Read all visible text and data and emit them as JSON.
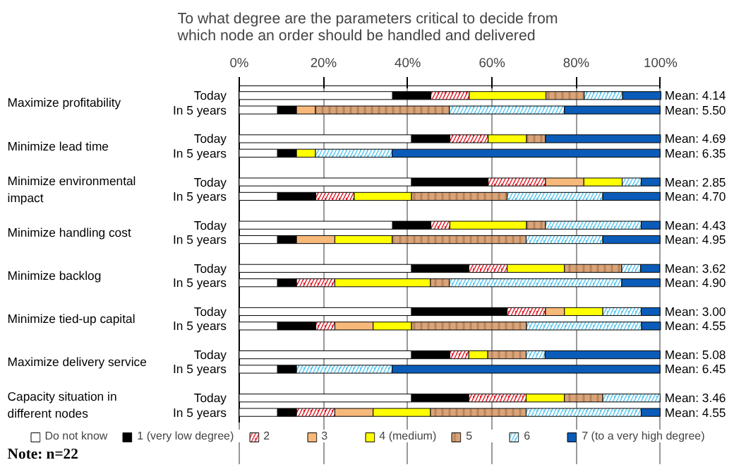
{
  "chart_data": {
    "type": "bar",
    "orientation": "horizontal",
    "stacked": true,
    "title": "To what degree are the parameters critical to decide from which node an order should be handled and delivered",
    "categories": [
      "Today",
      "In 5 years",
      null,
      "Today",
      "In 5 years",
      null,
      "Today",
      "In 5 years",
      null,
      "Today",
      "In 5 years",
      null,
      "Today",
      "In 5 years",
      null,
      "Today",
      "In 5 years",
      null,
      "Today",
      "In 5 years",
      null,
      "Today",
      "In 5 years"
    ],
    "series": [
      {
        "name": "Do not know",
        "color": "#ffffff",
        "values": [
          36.4,
          9.1,
          null,
          40.9,
          9.1,
          null,
          40.9,
          9.1,
          null,
          36.4,
          9.1,
          null,
          40.9,
          9.1,
          null,
          40.9,
          9.1,
          null,
          40.9,
          9.1,
          null,
          40.9,
          9.1
        ]
      },
      {
        "name": "1 (very low degree)",
        "color": "#000000",
        "values": [
          9.1,
          4.5,
          null,
          9.1,
          4.5,
          null,
          18.2,
          9.1,
          null,
          9.1,
          4.5,
          null,
          13.6,
          4.5,
          null,
          22.7,
          9.1,
          null,
          9.1,
          4.5,
          null,
          13.6,
          4.5
        ]
      },
      {
        "name": "2",
        "color": "#e8202a",
        "values": [
          9.1,
          0,
          null,
          9.1,
          0,
          null,
          13.6,
          9.1,
          null,
          4.5,
          0,
          null,
          9.1,
          9.1,
          null,
          9.1,
          4.5,
          null,
          4.5,
          0,
          null,
          13.6,
          9.1
        ]
      },
      {
        "name": "3",
        "color": "#f7b97a",
        "values": [
          0,
          4.5,
          null,
          0,
          0,
          null,
          9.1,
          0,
          null,
          0,
          9.1,
          null,
          0,
          0,
          null,
          4.5,
          9.1,
          null,
          0,
          0,
          null,
          0,
          9.1
        ]
      },
      {
        "name": "4 (medium)",
        "color": "#ffff00",
        "values": [
          18.2,
          0,
          null,
          9.1,
          4.5,
          null,
          9.1,
          13.6,
          null,
          18.2,
          13.6,
          null,
          13.6,
          22.7,
          null,
          9.1,
          9.1,
          null,
          4.5,
          0,
          null,
          9.1,
          13.6
        ]
      },
      {
        "name": "5",
        "color": "#d9a47a",
        "values": [
          9.1,
          31.8,
          null,
          4.5,
          0,
          null,
          0,
          22.7,
          null,
          4.5,
          31.8,
          null,
          13.6,
          4.5,
          null,
          0,
          27.3,
          null,
          9.1,
          0,
          null,
          9.1,
          22.7
        ]
      },
      {
        "name": "6",
        "color": "#5bc8f0",
        "values": [
          9.1,
          27.3,
          null,
          0,
          18.2,
          null,
          4.5,
          22.7,
          null,
          22.7,
          18.2,
          null,
          4.5,
          40.9,
          null,
          9.1,
          27.3,
          null,
          4.5,
          22.7,
          null,
          13.6,
          27.3
        ]
      },
      {
        "name": "7 (to a very high degree)",
        "color": "#0a5cb8",
        "values": [
          9.1,
          22.7,
          null,
          27.3,
          63.6,
          null,
          4.5,
          13.6,
          null,
          4.5,
          13.6,
          null,
          4.5,
          9.1,
          null,
          4.5,
          4.5,
          null,
          27.3,
          63.6,
          null,
          0,
          4.5
        ]
      }
    ],
    "annotations": [
      "Maximize profitability",
      "Minimize lead time",
      "Minimize environmental impact",
      "Minimize handling cost",
      "Minimize backlog",
      "Minimize tied-up capital",
      "Maximize delivery service",
      "Capacity situation in different nodes",
      "Mean: 4.14",
      "Mean: 5.50",
      "Mean: 4.69",
      "Mean: 6.35",
      "Mean: 2.85",
      "Mean: 4.70",
      "Mean: 4.43",
      "Mean: 4.95",
      "Mean: 3.62",
      "Mean: 4.90",
      "Mean: 3.00",
      "Mean: 4.55",
      "Mean: 5.08",
      "Mean: 6.45",
      "Mean: 3.46",
      "Mean: 4.55",
      "Note: n=22"
    ],
    "xlim": [
      0,
      100
    ],
    "xticks": [
      {
        "value": 0,
        "label": "0%"
      },
      {
        "value": 20,
        "label": "20%"
      },
      {
        "value": 40,
        "label": "40%"
      },
      {
        "value": 60,
        "label": "60%"
      },
      {
        "value": 80,
        "label": "80%"
      },
      {
        "value": 100,
        "label": "100%"
      }
    ],
    "grid": "x",
    "legend": "bottom"
  }
}
